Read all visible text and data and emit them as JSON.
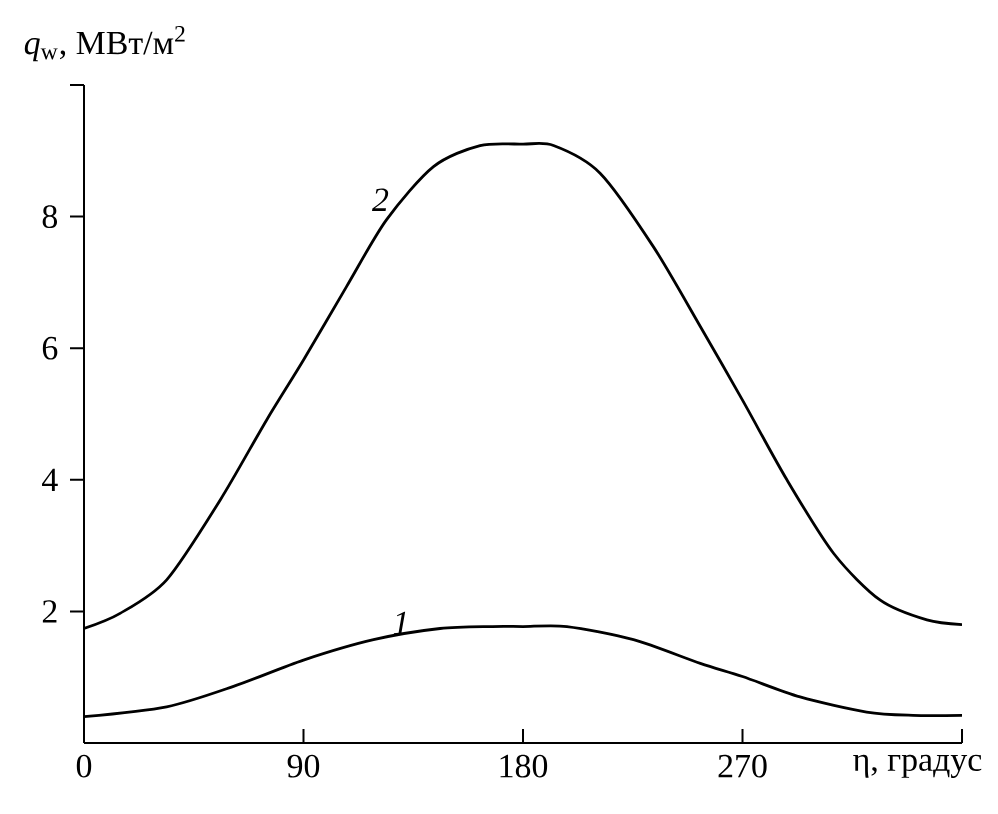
{
  "chart_data": {
    "type": "line",
    "xlabel": "η, градус",
    "ylabel": "*q*$_{w}$, МВт/м$^{2}$",
    "xlim": [
      0,
      360
    ],
    "xticks": [
      0,
      90,
      180,
      270,
      {
        "value": 360,
        "label": null
      }
    ],
    "ylim": [
      0,
      10
    ],
    "yticks": [
      2,
      4,
      6,
      8,
      {
        "value": 10,
        "label": null
      }
    ],
    "grid": false,
    "line_style": "solid",
    "marker": "none",
    "series": [
      {
        "color": "#000000",
        "x": [
          0,
          14.8,
          33.9,
          55.8,
          74.9,
          90,
          107.7,
          124,
          143.3,
          162.4,
          180,
          192.5,
          211.6,
          233.5,
          252.7,
          270,
          288.2,
          307.4,
          326.5,
          345.6,
          360
        ],
        "values": [
          1.74,
          1.97,
          2.48,
          3.69,
          4.91,
          5.82,
          6.94,
          7.95,
          8.76,
          9.08,
          9.1,
          9.08,
          8.66,
          7.54,
          6.33,
          5.21,
          4.0,
          2.88,
          2.17,
          1.87,
          1.8
        ]
      },
      {
        "color": "#000000",
        "x": [
          0,
          33.9,
          61.3,
          90,
          118.7,
          146,
          167.5,
          180,
          198,
          225.3,
          252.7,
          270,
          293.6,
          320.9,
          339.9,
          360
        ],
        "values": [
          0.4,
          0.55,
          0.86,
          1.26,
          1.57,
          1.74,
          1.77,
          1.77,
          1.77,
          1.57,
          1.21,
          1.01,
          0.7,
          0.47,
          0.42,
          0.42
        ]
      }
    ],
    "annotations": [
      {
        "text": "2",
        "x": 126,
        "y": 8.05
      },
      {
        "text": "1",
        "x": 130,
        "y": 1.62
      }
    ]
  }
}
